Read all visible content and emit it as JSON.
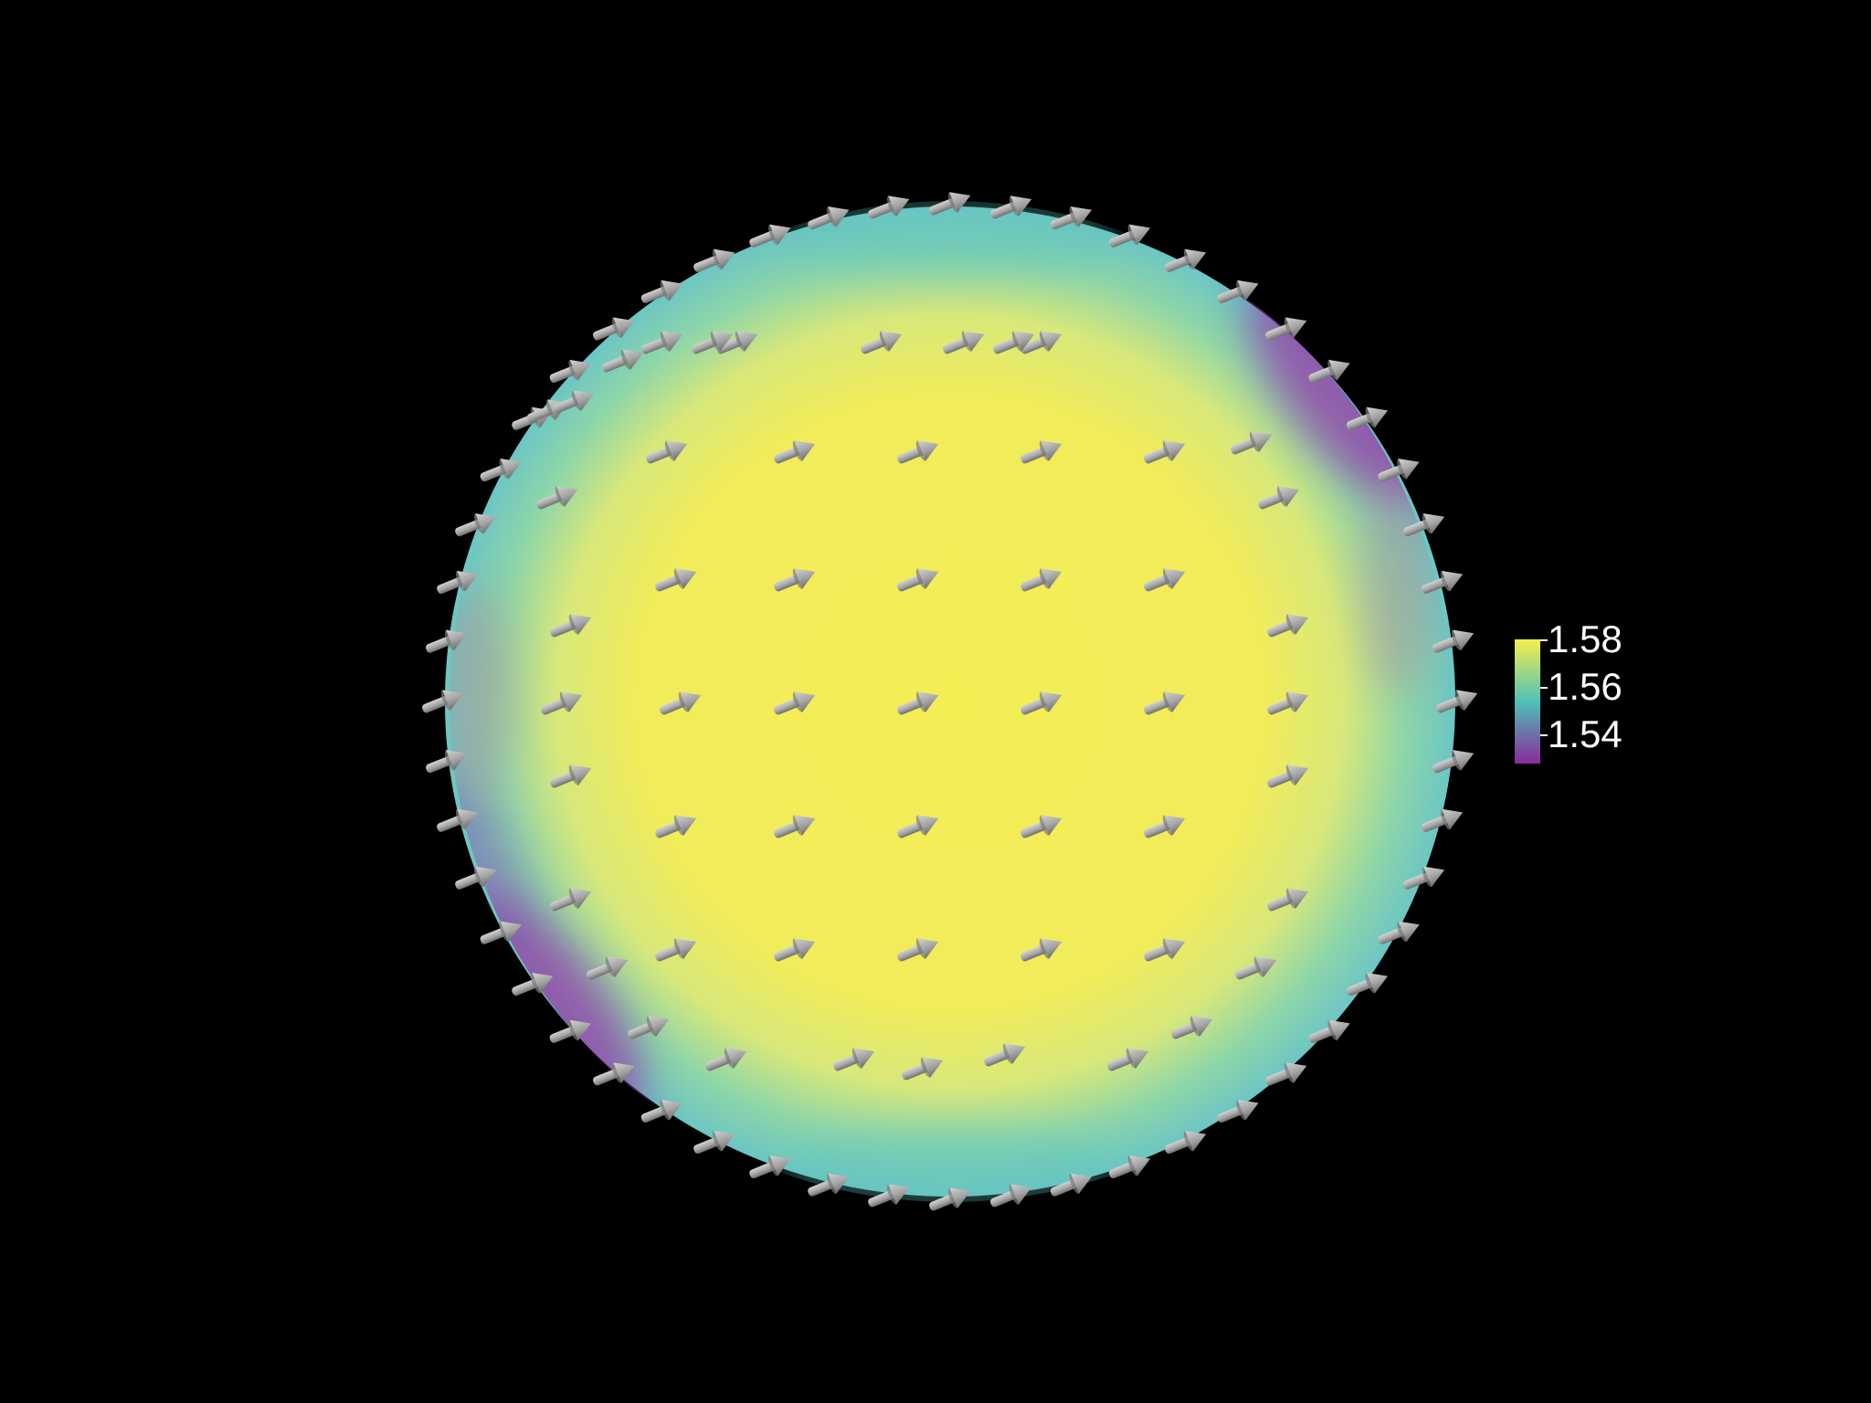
{
  "scene": {
    "background": "#000000",
    "surface_colormap": [
      "#440154",
      "#31688e",
      "#35b779",
      "#fde725"
    ],
    "arrow_color": "#a6a6a6",
    "glyph": "arrow-icon",
    "glyph_count": 107
  },
  "scalar_bar": {
    "min": 1.53,
    "max": 1.585,
    "ticks": [
      "1.58",
      "1.56",
      "1.54"
    ],
    "colors": {
      "top": "#f5ef4f",
      "mid": "#4fc0b8",
      "bottom": "#8a2a9a"
    }
  }
}
